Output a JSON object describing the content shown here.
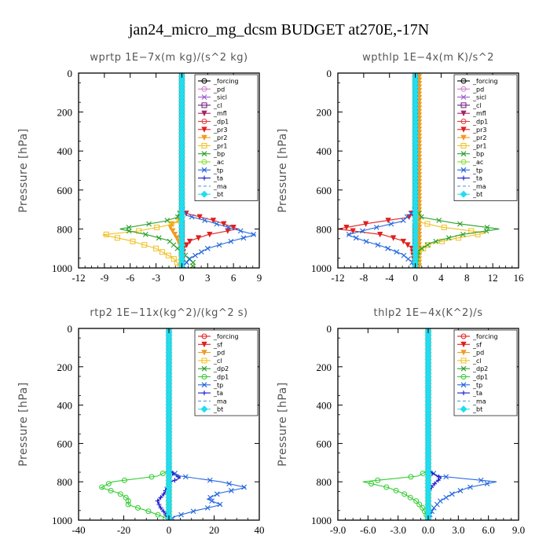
{
  "figure_title": "jan24_micro_mg_dcsm  BUDGET at270E,-17N",
  "chart_data": [
    {
      "type": "line",
      "title": "wprtp   1E−7x(m kg)/(s^2 kg)",
      "ylabel": "Pressure [hPa]",
      "xlim": [
        -12,
        9
      ],
      "xticks": [
        -12,
        -9,
        -6,
        -3,
        0,
        3,
        6,
        9
      ],
      "xtick_labels": [
        "-12",
        "-9",
        "-6",
        "-3",
        "0",
        "3",
        "6",
        "9"
      ],
      "ylim": [
        0,
        1000
      ],
      "yticks": [
        0,
        200,
        400,
        600,
        800,
        1000
      ],
      "legend": "top-right",
      "series": [
        {
          "name": "_forcing",
          "color": "#000000",
          "marker": "o",
          "dash": "",
          "p": [
            0,
            1000
          ],
          "x": [
            0,
            0
          ]
        },
        {
          "name": "_pd",
          "color": "#cc77cc",
          "marker": "o",
          "dash": "",
          "p": [
            0,
            1000
          ],
          "x": [
            0,
            0
          ]
        },
        {
          "name": "_sicl",
          "color": "#9955cc",
          "marker": "x",
          "dash": "",
          "p": [
            0,
            1000
          ],
          "x": [
            0,
            0
          ]
        },
        {
          "name": "_cl",
          "color": "#6a1a7a",
          "marker": "s",
          "dash": "",
          "p": [
            0,
            1000
          ],
          "x": [
            0,
            0
          ]
        },
        {
          "name": "_mfl",
          "color": "#aa2266",
          "marker": "tri",
          "dash": "",
          "p": [
            0,
            1000
          ],
          "x": [
            0,
            0
          ]
        },
        {
          "name": "_dp1",
          "color": "#e03a3a",
          "marker": "o",
          "dash": "",
          "p": [
            0,
            1000
          ],
          "x": [
            0,
            0
          ]
        },
        {
          "name": "_pr3",
          "color": "#e02020",
          "marker": "tri",
          "dash": "",
          "p": [
            0,
            700,
            720,
            760,
            800,
            830,
            860,
            900,
            1000
          ],
          "x": [
            0,
            0,
            0.5,
            4,
            6.5,
            3,
            1,
            0.2,
            0
          ]
        },
        {
          "name": "_pr2",
          "color": "#f09a20",
          "marker": "tri",
          "dash": "",
          "p": [
            0,
            700,
            760,
            780,
            800,
            860,
            900,
            1000
          ],
          "x": [
            0,
            0,
            -0.3,
            -1.5,
            -1.2,
            -0.4,
            -0.1,
            0
          ]
        },
        {
          "name": "_pr1",
          "color": "#f0c020",
          "marker": "s",
          "dash": "",
          "p": [
            0,
            750,
            780,
            810,
            830,
            860,
            900,
            950,
            1000
          ],
          "x": [
            0,
            0,
            -1.5,
            -5,
            -9.2,
            -6,
            -3,
            -1,
            0
          ]
        },
        {
          "name": "_bp",
          "color": "#2aa02a",
          "marker": "x",
          "dash": "",
          "p": [
            0,
            700,
            740,
            760,
            800,
            830,
            860,
            900,
            940,
            980,
            1000
          ],
          "x": [
            0,
            0,
            -0.5,
            -2,
            -7.2,
            -4,
            -1.5,
            -0.5,
            0.5,
            1.5,
            1
          ]
        },
        {
          "name": "_ac",
          "color": "#88dd33",
          "marker": "o",
          "dash": "",
          "p": [
            0,
            1000
          ],
          "x": [
            0,
            0
          ]
        },
        {
          "name": "_tp",
          "color": "#2266dd",
          "marker": "x",
          "dash": "",
          "p": [
            0,
            700,
            730,
            760,
            800,
            830,
            860,
            900,
            950,
            1000
          ],
          "x": [
            0,
            0,
            0.5,
            3,
            6,
            8.5,
            6,
            3,
            1,
            0
          ]
        },
        {
          "name": "_ta",
          "color": "#1a1acc",
          "marker": "plus",
          "dash": "",
          "p": [
            0,
            1000
          ],
          "x": [
            0,
            0
          ]
        },
        {
          "name": "_ma",
          "color": "#4aa0dd",
          "marker": "",
          "dash": "4,3",
          "p": [
            0,
            1000
          ],
          "x": [
            0,
            0
          ]
        },
        {
          "name": "_bt",
          "color": "#22ddee",
          "marker": "d",
          "dash": "",
          "p": [
            0,
            1000
          ],
          "x": [
            0,
            0
          ]
        }
      ]
    },
    {
      "type": "line",
      "title": "wpthlp   1E−4x(m K)/s^2",
      "ylabel": "Pressure [hPa]",
      "xlim": [
        -12,
        16
      ],
      "xticks": [
        -12,
        -8,
        -4,
        0,
        4,
        8,
        12,
        16
      ],
      "xtick_labels": [
        "-12",
        "-8",
        "-4",
        "0",
        "4",
        "8",
        "12",
        "16"
      ],
      "ylim": [
        0,
        1000
      ],
      "yticks": [
        0,
        200,
        400,
        600,
        800,
        1000
      ],
      "legend": "top-right",
      "series": [
        {
          "name": "_forcing",
          "color": "#000000",
          "marker": "o",
          "dash": "",
          "p": [
            0,
            1000
          ],
          "x": [
            0,
            0
          ]
        },
        {
          "name": "_pd",
          "color": "#cc77cc",
          "marker": "o",
          "dash": "",
          "p": [
            0,
            1000
          ],
          "x": [
            0,
            0
          ]
        },
        {
          "name": "_sicl",
          "color": "#9955cc",
          "marker": "x",
          "dash": "",
          "p": [
            0,
            1000
          ],
          "x": [
            0,
            0
          ]
        },
        {
          "name": "_cl",
          "color": "#6a1a7a",
          "marker": "s",
          "dash": "",
          "p": [
            0,
            1000
          ],
          "x": [
            0,
            0
          ]
        },
        {
          "name": "_mfl",
          "color": "#aa2266",
          "marker": "tri",
          "dash": "",
          "p": [
            0,
            1000
          ],
          "x": [
            0,
            0
          ]
        },
        {
          "name": "_dp1",
          "color": "#e03a3a",
          "marker": "o",
          "dash": "",
          "p": [
            0,
            1000
          ],
          "x": [
            0,
            0
          ]
        },
        {
          "name": "_pr3",
          "color": "#e02020",
          "marker": "tri",
          "dash": "",
          "p": [
            0,
            700,
            740,
            770,
            800,
            830,
            860,
            900,
            1000
          ],
          "x": [
            0,
            0,
            -1,
            -7,
            -12,
            -5,
            -2,
            -0.5,
            0
          ]
        },
        {
          "name": "_pr2",
          "color": "#f09a20",
          "marker": "tri",
          "dash": "",
          "p": [
            0,
            1000
          ],
          "x": [
            0.6,
            0.6
          ]
        },
        {
          "name": "_pr1",
          "color": "#f0c020",
          "marker": "s",
          "dash": "",
          "p": [
            0,
            760,
            790,
            820,
            850,
            880,
            920,
            1000
          ],
          "x": [
            0,
            0,
            4,
            11,
            6,
            2,
            0.5,
            0
          ]
        },
        {
          "name": "_bp",
          "color": "#2aa02a",
          "marker": "x",
          "dash": "",
          "p": [
            0,
            700,
            740,
            770,
            800,
            830,
            870,
            910,
            1000
          ],
          "x": [
            0,
            0,
            1,
            6,
            13,
            7,
            2.5,
            0.5,
            0
          ]
        },
        {
          "name": "_ac",
          "color": "#88dd33",
          "marker": "o",
          "dash": "",
          "p": [
            0,
            1000
          ],
          "x": [
            0,
            0
          ]
        },
        {
          "name": "_tp",
          "color": "#2266dd",
          "marker": "x",
          "dash": "",
          "p": [
            0,
            700,
            760,
            800,
            830,
            860,
            890,
            930,
            970,
            1000
          ],
          "x": [
            0,
            0,
            -2,
            -7,
            -10.5,
            -8,
            -5,
            -2,
            -0.5,
            0
          ]
        },
        {
          "name": "_ta",
          "color": "#1a1acc",
          "marker": "plus",
          "dash": "",
          "p": [
            0,
            1000
          ],
          "x": [
            0,
            0
          ]
        },
        {
          "name": "_ma",
          "color": "#4aa0dd",
          "marker": "",
          "dash": "4,3",
          "p": [
            0,
            1000
          ],
          "x": [
            0,
            0
          ]
        },
        {
          "name": "_bt",
          "color": "#22ddee",
          "marker": "d",
          "dash": "",
          "p": [
            0,
            1000
          ],
          "x": [
            0,
            0
          ]
        }
      ]
    },
    {
      "type": "line",
      "title": "rtp2   1E−11x(kg^2)/(kg^2 s)",
      "ylabel": "Pressure [hPa]",
      "xlim": [
        -40,
        40
      ],
      "xticks": [
        -40,
        -20,
        0,
        20,
        40
      ],
      "xtick_labels": [
        "-40",
        "-20",
        "0",
        "20",
        "40"
      ],
      "ylim": [
        0,
        1000
      ],
      "yticks": [
        0,
        200,
        400,
        600,
        800,
        1000
      ],
      "legend": "top-right",
      "series": [
        {
          "name": "_forcing",
          "color": "#e02020",
          "marker": "o",
          "dash": "",
          "p": [
            0,
            1000
          ],
          "x": [
            0,
            0
          ]
        },
        {
          "name": "_sf",
          "color": "#e02020",
          "marker": "tri",
          "dash": "",
          "p": [
            0,
            1000
          ],
          "x": [
            0,
            0
          ]
        },
        {
          "name": "_pd",
          "color": "#f09a20",
          "marker": "tri",
          "dash": "",
          "p": [
            0,
            1000
          ],
          "x": [
            0,
            0
          ]
        },
        {
          "name": "_cl",
          "color": "#f0c020",
          "marker": "s",
          "dash": "",
          "p": [
            0,
            1000
          ],
          "x": [
            0,
            0
          ]
        },
        {
          "name": "_dp2",
          "color": "#2aa02a",
          "marker": "x",
          "dash": "",
          "p": [
            0,
            1000
          ],
          "x": [
            0,
            0
          ]
        },
        {
          "name": "_dp1",
          "color": "#33cc33",
          "marker": "o",
          "dash": "",
          "p": [
            0,
            740,
            770,
            800,
            830,
            860,
            890,
            920,
            950,
            980,
            1000
          ],
          "x": [
            0,
            0,
            -5,
            -25,
            -30,
            -22,
            -18,
            -18,
            -10,
            -3,
            0
          ]
        },
        {
          "name": "_tp",
          "color": "#2266dd",
          "marker": "x",
          "dash": "",
          "p": [
            0,
            740,
            770,
            800,
            830,
            860,
            890,
            920,
            950,
            980,
            1000
          ],
          "x": [
            0,
            0,
            5,
            23,
            34,
            22,
            17,
            23,
            12,
            3,
            0
          ]
        },
        {
          "name": "_ta",
          "color": "#1a1acc",
          "marker": "plus",
          "dash": "",
          "p": [
            0,
            740,
            760,
            780,
            800,
            830,
            860,
            900,
            930,
            960,
            1000
          ],
          "x": [
            0,
            0,
            2,
            5,
            1,
            -1,
            -2,
            -5,
            -4,
            -2,
            0
          ]
        },
        {
          "name": "_ma",
          "color": "#4aa0dd",
          "marker": "",
          "dash": "4,3",
          "p": [
            0,
            1000
          ],
          "x": [
            0,
            0
          ]
        },
        {
          "name": "_bt",
          "color": "#22ddee",
          "marker": "d",
          "dash": "",
          "p": [
            0,
            1000
          ],
          "x": [
            0,
            0
          ]
        }
      ]
    },
    {
      "type": "line",
      "title": "thlp2   1E−4x(K^2)/s",
      "ylabel": "Pressure [hPa]",
      "xlim": [
        -9,
        9
      ],
      "xticks": [
        -9,
        -6,
        -3,
        0,
        3,
        6,
        9
      ],
      "xtick_labels": [
        "-9.0",
        "-6.0",
        "-3.0",
        "0.0",
        "3.0",
        "6.0",
        "9.0"
      ],
      "ylim": [
        0,
        1000
      ],
      "yticks": [
        0,
        200,
        400,
        600,
        800,
        1000
      ],
      "legend": "top-right",
      "series": [
        {
          "name": "_forcing",
          "color": "#e02020",
          "marker": "o",
          "dash": "",
          "p": [
            0,
            1000
          ],
          "x": [
            0,
            0
          ]
        },
        {
          "name": "_sf",
          "color": "#e02020",
          "marker": "tri",
          "dash": "",
          "p": [
            0,
            1000
          ],
          "x": [
            0,
            0
          ]
        },
        {
          "name": "_pd",
          "color": "#f09a20",
          "marker": "tri",
          "dash": "",
          "p": [
            0,
            1000
          ],
          "x": [
            0,
            0
          ]
        },
        {
          "name": "_cl",
          "color": "#f0c020",
          "marker": "s",
          "dash": "",
          "p": [
            0,
            1000
          ],
          "x": [
            0,
            0
          ]
        },
        {
          "name": "_dp2",
          "color": "#2aa02a",
          "marker": "x",
          "dash": "",
          "p": [
            0,
            1000
          ],
          "x": [
            0,
            0
          ]
        },
        {
          "name": "_dp1",
          "color": "#33cc33",
          "marker": "o",
          "dash": "",
          "p": [
            0,
            740,
            770,
            800,
            830,
            860,
            900,
            940,
            980,
            1000
          ],
          "x": [
            0,
            0,
            -1,
            -6.5,
            -4,
            -2.5,
            -1.2,
            -0.5,
            -0.1,
            0
          ]
        },
        {
          "name": "_tp",
          "color": "#2266dd",
          "marker": "x",
          "dash": "",
          "p": [
            0,
            740,
            770,
            800,
            830,
            860,
            900,
            940,
            980,
            1000
          ],
          "x": [
            0,
            0,
            1,
            6.8,
            4,
            2.5,
            1.2,
            0.5,
            0.1,
            0
          ]
        },
        {
          "name": "_ta",
          "color": "#1a1acc",
          "marker": "plus",
          "dash": "",
          "p": [
            0,
            740,
            760,
            780,
            800,
            830,
            860,
            900,
            1000
          ],
          "x": [
            0,
            0,
            0.5,
            1.3,
            0.8,
            0.3,
            0,
            0,
            0
          ]
        },
        {
          "name": "_ma",
          "color": "#4aa0dd",
          "marker": "",
          "dash": "4,3",
          "p": [
            0,
            1000
          ],
          "x": [
            0,
            0
          ]
        },
        {
          "name": "_bt",
          "color": "#22ddee",
          "marker": "d",
          "dash": "",
          "p": [
            0,
            1000
          ],
          "x": [
            0,
            0
          ]
        }
      ]
    }
  ]
}
